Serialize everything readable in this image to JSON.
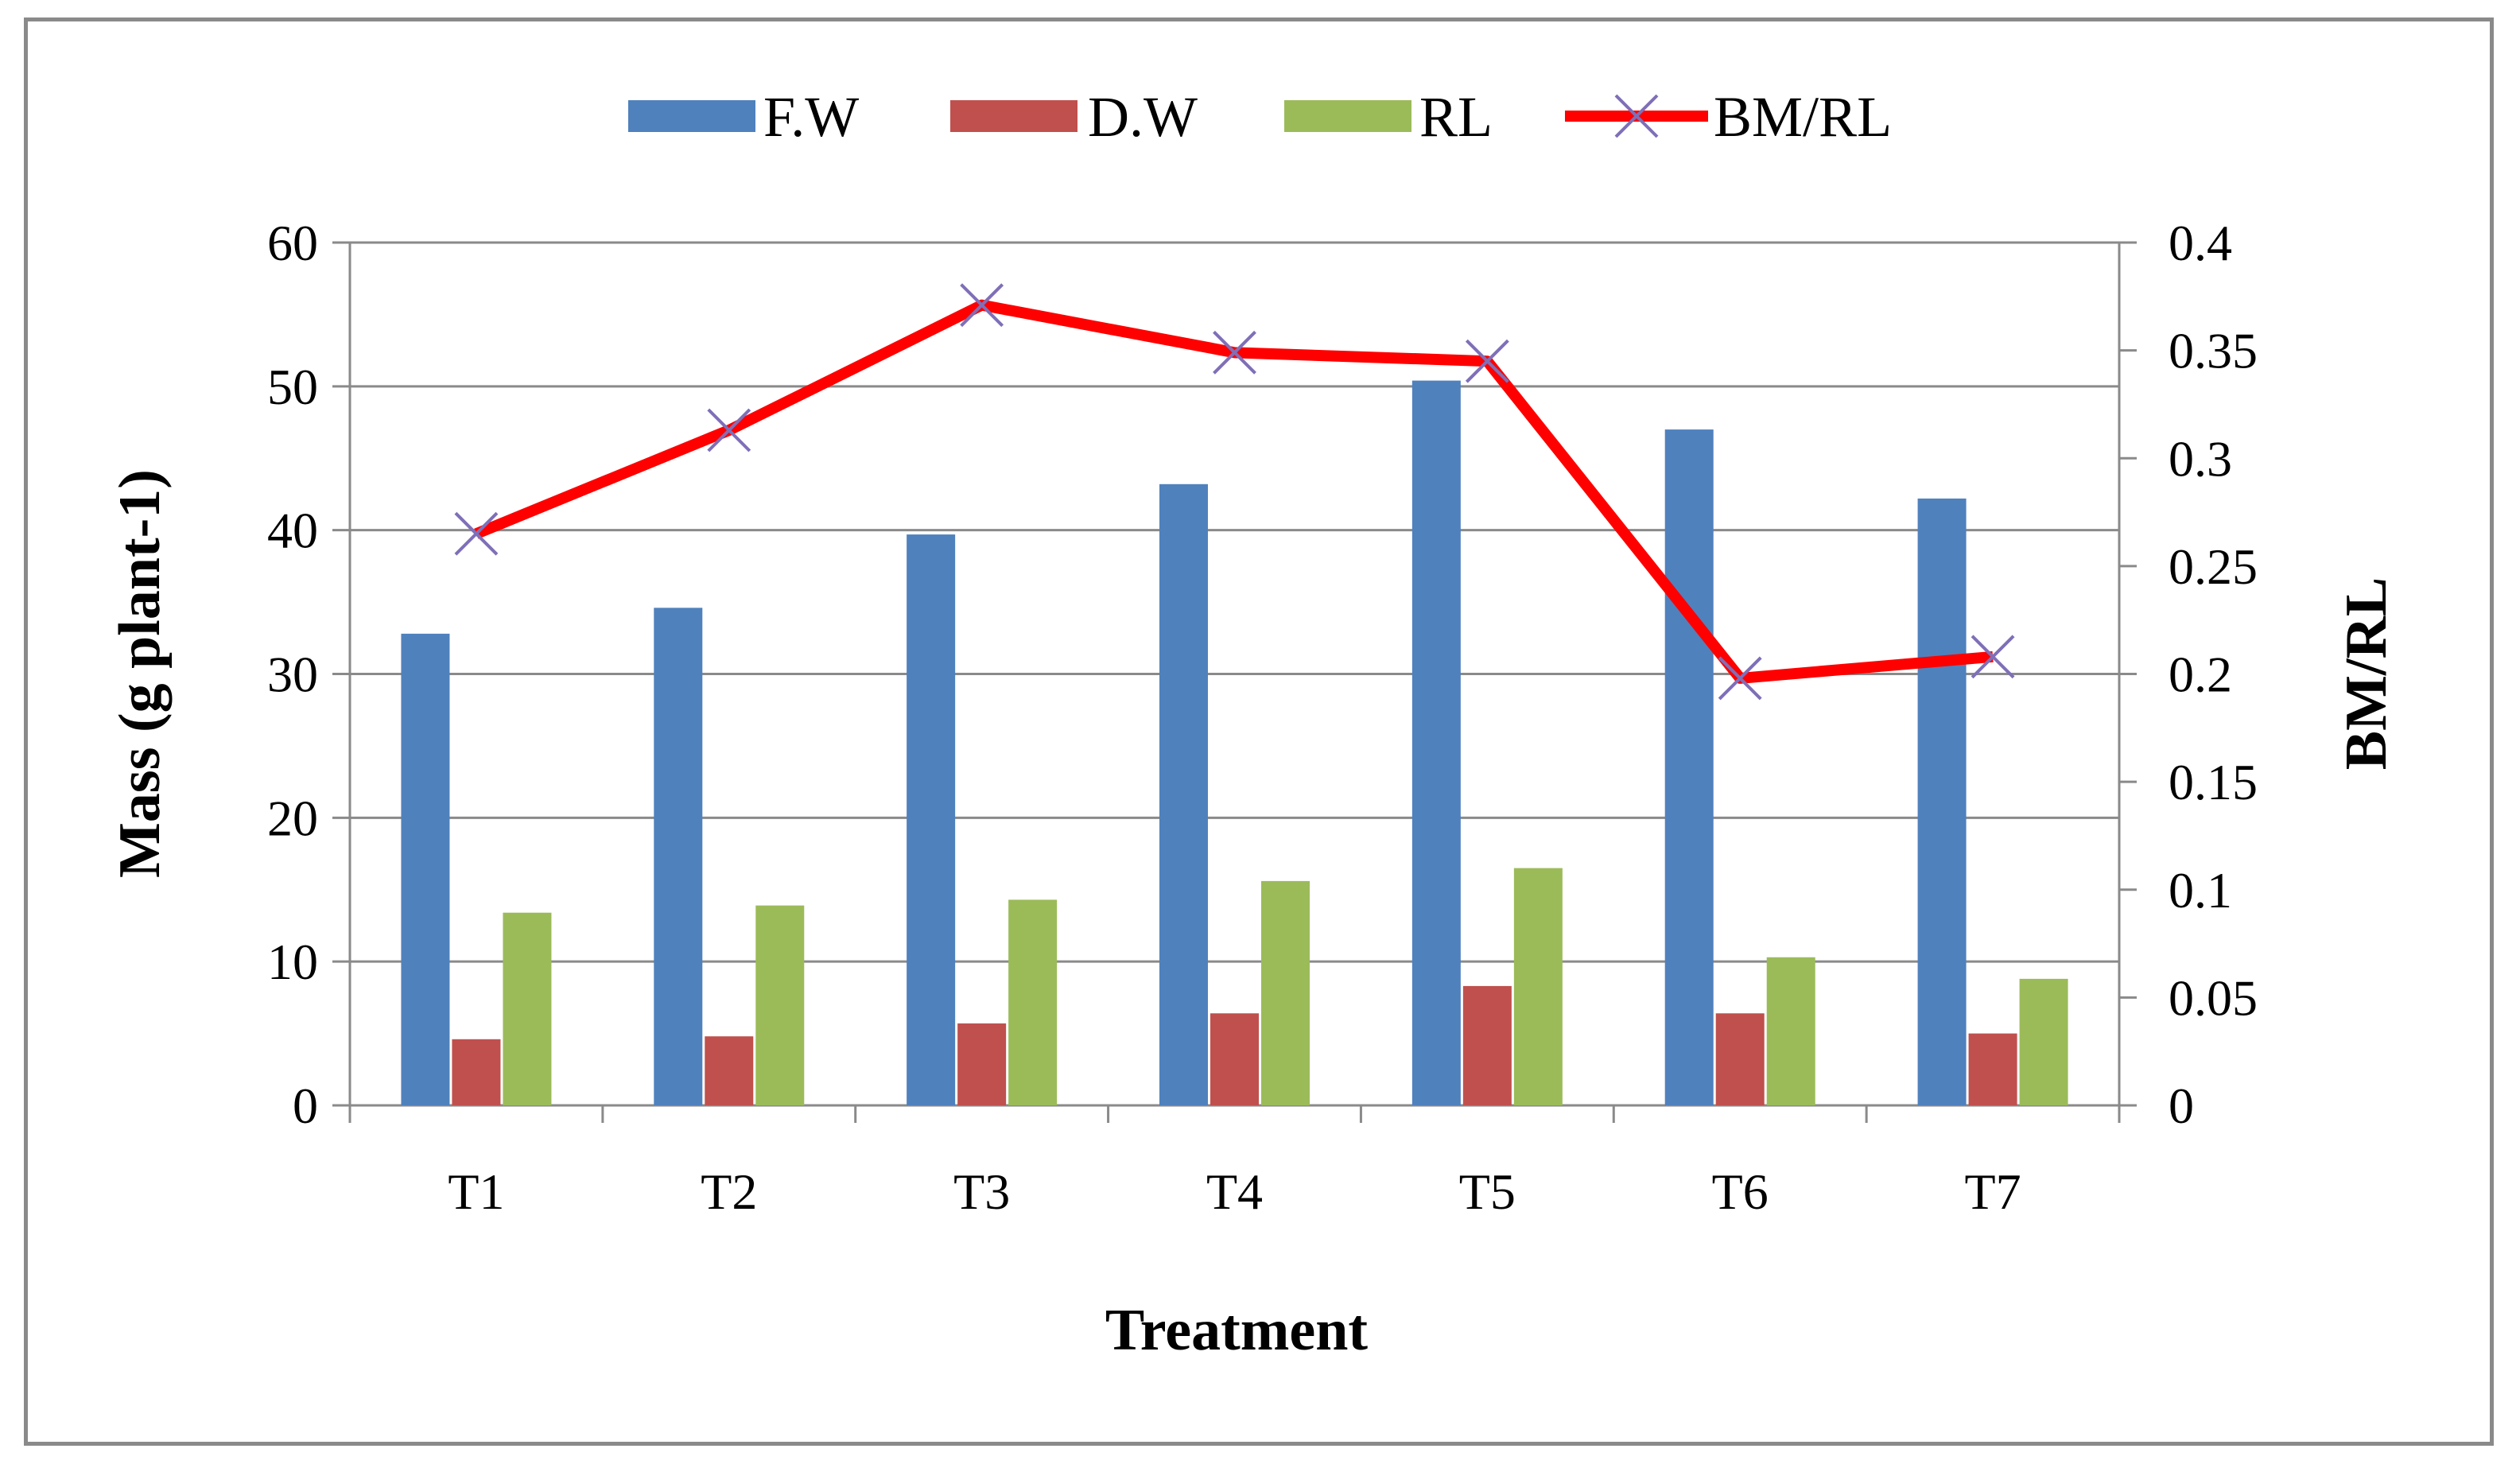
{
  "chart_data": {
    "type": "bar",
    "title": "",
    "xlabel": "Treatment",
    "ylabel": "Mass (g  plant-1)",
    "y2label": "BM/RL",
    "categories": [
      "T1",
      "T2",
      "T3",
      "T4",
      "T5",
      "T6",
      "T7"
    ],
    "ylim": [
      0,
      60
    ],
    "y2lim": [
      0,
      0.4
    ],
    "yticks": [
      "0",
      "10",
      "20",
      "30",
      "40",
      "50",
      "60"
    ],
    "y2ticks": [
      "0",
      "0.05",
      "0.1",
      "0.15",
      "0.2",
      "0.25",
      "0.3",
      "0.35",
      "0.4"
    ],
    "grid": true,
    "legend": "top",
    "series": [
      {
        "name": "F.W",
        "type": "bar",
        "axis": "left",
        "color": "#4f81bd",
        "values": [
          32.8,
          34.6,
          39.7,
          43.2,
          50.4,
          47.0,
          42.2
        ]
      },
      {
        "name": "D.W",
        "type": "bar",
        "axis": "left",
        "color": "#c0504d",
        "values": [
          4.6,
          4.8,
          5.7,
          6.4,
          8.3,
          6.4,
          5.0
        ]
      },
      {
        "name": "RL",
        "type": "bar",
        "axis": "left",
        "color": "#9bbb59",
        "values": [
          13.4,
          13.9,
          14.3,
          15.6,
          16.5,
          10.3,
          8.8
        ]
      },
      {
        "name": "BM/RL",
        "type": "line",
        "axis": "right",
        "color": "#ff0000",
        "marker_color": "#7f6fb8",
        "values": [
          0.265,
          0.313,
          0.371,
          0.349,
          0.345,
          0.198,
          0.208
        ]
      }
    ]
  }
}
